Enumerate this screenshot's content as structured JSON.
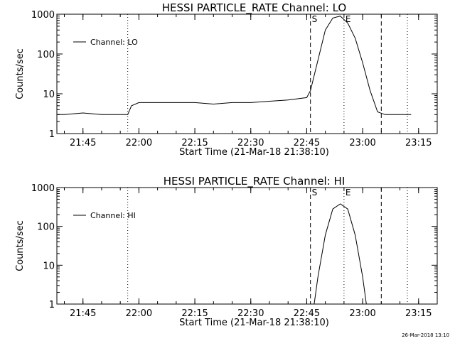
{
  "chart_data": [
    {
      "type": "line",
      "title": "HESSI PARTICLE_RATE Channel: LO",
      "xlabel": "Start Time (21-Mar-18 21:38:10)",
      "ylabel": "Counts/sec",
      "yscale": "log",
      "ylim": [
        1,
        1000
      ],
      "ytick_labels": [
        "1",
        "10",
        "100",
        "1000"
      ],
      "xlim": [
        "21:38",
        "23:20"
      ],
      "xtick_labels": [
        "21:45",
        "22:00",
        "22:15",
        "22:30",
        "22:45",
        "23:00",
        "23:15"
      ],
      "legend": {
        "entries": [
          "Channel: LO"
        ],
        "placement": "top-left"
      },
      "markers": [
        {
          "time": "22:46",
          "label": "S",
          "style": "dashed"
        },
        {
          "time": "22:55",
          "label": "E",
          "style": "dotted"
        },
        {
          "time": "23:05",
          "label": "",
          "style": "dashed"
        },
        {
          "time": "21:57",
          "label": "",
          "style": "dotted"
        },
        {
          "time": "23:12",
          "label": "",
          "style": "dotted"
        }
      ],
      "series": [
        {
          "name": "Channel: LO",
          "x": [
            "21:38",
            "21:40",
            "21:45",
            "21:50",
            "21:55",
            "21:57",
            "21:58",
            "22:00",
            "22:05",
            "22:10",
            "22:15",
            "22:20",
            "22:25",
            "22:30",
            "22:35",
            "22:40",
            "22:45",
            "22:46",
            "22:48",
            "22:50",
            "22:52",
            "22:54",
            "22:56",
            "22:58",
            "23:00",
            "23:02",
            "23:04",
            "23:06",
            "23:08",
            "23:10",
            "23:13"
          ],
          "values": [
            3,
            3,
            3.3,
            3,
            3,
            3,
            5,
            6,
            6,
            6,
            6,
            5.5,
            6,
            6,
            6.5,
            7,
            8,
            12,
            70,
            400,
            800,
            900,
            600,
            250,
            60,
            12,
            3.5,
            3,
            3,
            3,
            3
          ]
        }
      ]
    },
    {
      "type": "line",
      "title": "HESSI PARTICLE_RATE Channel: HI",
      "xlabel": "Start Time (21-Mar-18 21:38:10)",
      "ylabel": "Counts/sec",
      "yscale": "log",
      "ylim": [
        1,
        1000
      ],
      "ytick_labels": [
        "1",
        "10",
        "100",
        "1000"
      ],
      "xlim": [
        "21:38",
        "23:20"
      ],
      "xtick_labels": [
        "21:45",
        "22:00",
        "22:15",
        "22:30",
        "22:45",
        "23:00",
        "23:15"
      ],
      "legend": {
        "entries": [
          "Channel: HI"
        ],
        "placement": "top-left"
      },
      "markers": [
        {
          "time": "22:46",
          "label": "S",
          "style": "dashed"
        },
        {
          "time": "22:55",
          "label": "E",
          "style": "dotted"
        },
        {
          "time": "23:05",
          "label": "",
          "style": "dashed"
        },
        {
          "time": "21:57",
          "label": "",
          "style": "dotted"
        },
        {
          "time": "23:12",
          "label": "",
          "style": "dotted"
        }
      ],
      "series": [
        {
          "name": "Channel: HI",
          "x": [
            "22:47",
            "22:48",
            "22:50",
            "22:52",
            "22:54",
            "22:56",
            "22:58",
            "23:00",
            "23:01"
          ],
          "values": [
            1,
            5,
            60,
            280,
            380,
            280,
            60,
            5,
            1
          ]
        }
      ]
    }
  ],
  "timestamp": "26-Mar-2018 13:10"
}
